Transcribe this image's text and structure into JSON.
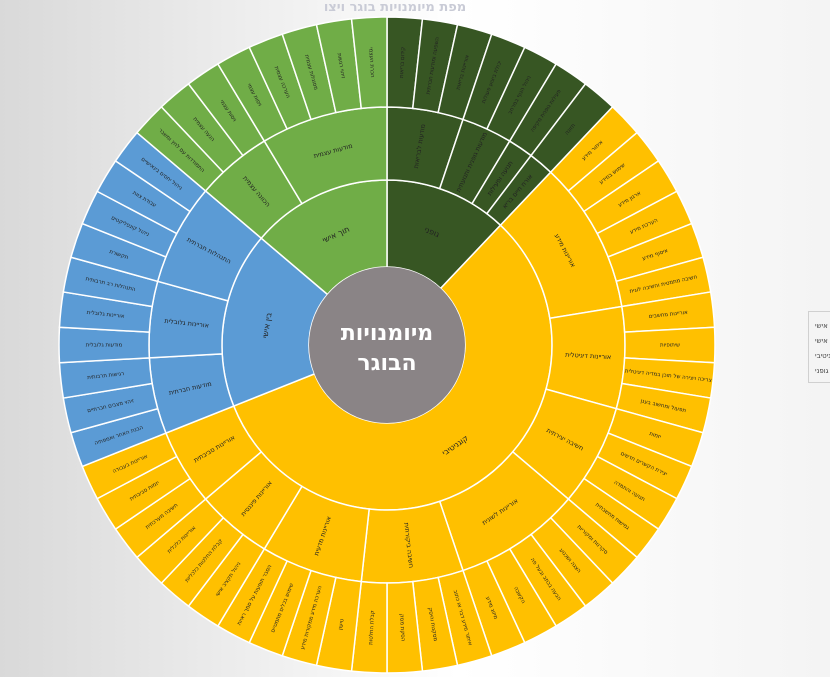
{
  "chart_data": {
    "type": "sunburst",
    "title": "מפת מיומנויות בוגר ויצו",
    "center_label": "מיומנויות הבוגר",
    "legend": {
      "placement": "right",
      "items": [
        {
          "label": "תוך אישי",
          "color": "#70ad47"
        },
        {
          "label": "בין אישי",
          "color": "#5b9bd5"
        },
        {
          "label": "קוגניטיבי",
          "color": "#ffc000"
        },
        {
          "label": "גופני",
          "color": "#375623"
        }
      ]
    },
    "colors": {
      "center_fill": "#8a8486",
      "center_text": "#ffffff",
      "separator": "#ffffff"
    },
    "categories": [
      {
        "name": "גופני",
        "color": "#375623",
        "children": [
          {
            "name": "מודעות לבריאות",
            "children": [
              {
                "name": "קידום בריאות"
              },
              {
                "name": "השפעה ומודעות חברתית"
              },
              {
                "name": "אוריינות בריאות"
              }
            ]
          },
          {
            "name": "מודעות גופנית ותנועתית",
            "children": [
              {
                "name": "יכולת ביצוע פעולות"
              },
              {
                "name": "ניהול הגוף במרחב"
              }
            ]
          },
          {
            "name": "תנועה ופעילות",
            "children": [
              {
                "name": "פעילות גופנית מקיפה"
              }
            ]
          },
          {
            "name": "אורח חיים בריא",
            "children": [
              {
                "name": "תזונה"
              }
            ]
          }
        ]
      },
      {
        "name": "קוגניטיבי",
        "color": "#ffc000",
        "children": [
          {
            "name": "אוריינות מידע",
            "children": [
              {
                "name": "איתור מידע"
              },
              {
                "name": "שימוש במידע"
              },
              {
                "name": "ארגון מידע"
              },
              {
                "name": "הערכת מידע"
              },
              {
                "name": "איסוף מידע"
              },
              {
                "name": "חשיבה מתמטית וחשיבה לוגית"
              }
            ]
          },
          {
            "name": "אוריינות דיגיטלית",
            "children": [
              {
                "name": "אוריינות מחשבים"
              },
              {
                "name": "שיתופיות"
              },
              {
                "name": "צריכה ויצירה של תוכן במדיה דיגיטלית"
              },
              {
                "name": "תפעול ומחשוב בענן"
              }
            ]
          },
          {
            "name": "חשיבה יצירתית",
            "children": [
              {
                "name": "יזמות"
              },
              {
                "name": "יצירת הקשרים חדשים"
              },
              {
                "name": "תנועה והתמדה"
              },
              {
                "name": "גמישות מחשבתית"
              }
            ]
          },
          {
            "name": "אוריינות לשונית",
            "children": [
              {
                "name": "סקרנות ומקוריות"
              },
              {
                "name": "הצגה ושכנוע"
              },
              {
                "name": "הבעה בכתב ובעל פה"
              },
              {
                "name": "הקשבה"
              },
              {
                "name": "מיזוג מידע"
              }
            ]
          },
          {
            "name": "חשיבה ביקורתית",
            "children": [
              {
                "name": "איתור מידע דבר או כתוב"
              },
              {
                "name": "מסקנות והיסק"
              },
              {
                "name": "הסקת מסק"
              },
              {
                "name": "קבלת החלטות"
              }
            ]
          },
          {
            "name": "אוריינות מדעית",
            "children": [
              {
                "name": "טיעון"
              },
              {
                "name": "הערכת מידע ממקורות מידע"
              },
              {
                "name": "שימוש בכלים מתמטיים"
              },
              {
                "name": "הסבר תופעות על סמך ראיות"
              }
            ]
          },
          {
            "name": "אוריינות פיננסית",
            "children": [
              {
                "name": "ניהול תקציב אישי"
              },
              {
                "name": "קבלת החלטות כלכליות"
              },
              {
                "name": "אוריינות כלכלית"
              }
            ]
          },
          {
            "name": "אוריינות סביבתית",
            "children": [
              {
                "name": "חשיבה מערכתית"
              },
              {
                "name": "יזמות סביבתית"
              },
              {
                "name": "אוריינות בעבודה"
              }
            ]
          }
        ]
      },
      {
        "name": "בין אישי",
        "color": "#5b9bd5",
        "children": [
          {
            "name": "מודעות חברתית",
            "children": [
              {
                "name": "הבנת האחר ואמפתיה"
              },
              {
                "name": "זיהוי מצבים חברתיים"
              },
              {
                "name": "רגישות תרבותית"
              }
            ]
          },
          {
            "name": "אוריינות גלובלית",
            "children": [
              {
                "name": "מודעות גלובלית"
              },
              {
                "name": "אוריינות גלובלית"
              },
              {
                "name": "התנהלות רב תרבותית"
              }
            ]
          },
          {
            "name": "התנהלות חברתית",
            "children": [
              {
                "name": "תקשורת"
              },
              {
                "name": "ניהול קונפליקטים"
              },
              {
                "name": "עבודת צוות"
              },
              {
                "name": "ניהול יחסים בינאישיים"
              }
            ]
          }
        ]
      },
      {
        "name": "תוך אישי",
        "color": "#70ad47",
        "children": [
          {
            "name": "הכוונה עצמית",
            "children": [
              {
                "name": "התמודדות עם לחץ ומשבר"
              },
              {
                "name": "הנעה עצמית"
              },
              {
                "name": "ויסות עצמי"
              }
            ]
          },
          {
            "name": "מודעות עצמית",
            "children": [
              {
                "name": "ויסות עצמי"
              },
              {
                "name": "הערכה עצמית"
              },
              {
                "name": "מסוגלות עצמית"
              },
              {
                "name": "זיהוי רגשות"
              },
              {
                "name": "הכרת העצמי"
              }
            ]
          }
        ]
      }
    ]
  }
}
